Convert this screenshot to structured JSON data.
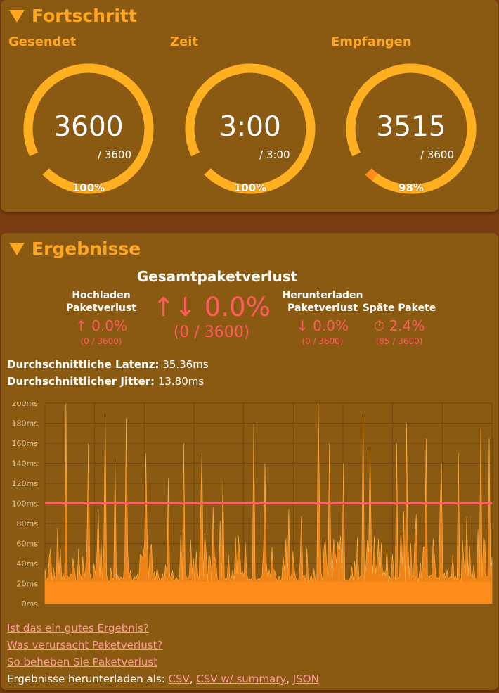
{
  "progress": {
    "title": "Fortschritt",
    "gauges": [
      {
        "label": "Gesendet",
        "value": "3600",
        "total": "/ 3600",
        "percent_label": "100%",
        "fraction": 1.0
      },
      {
        "label": "Zeit",
        "value": "3:00",
        "total": "/ 3:00",
        "percent_label": "100%",
        "fraction": 1.0
      },
      {
        "label": "Empfangen",
        "value": "3515",
        "total": "/ 3600",
        "percent_label": "98%",
        "fraction": 0.976
      }
    ]
  },
  "results": {
    "title": "Ergebnisse",
    "total_loss": {
      "title": "Gesamtpaketverlust",
      "icon": "up-down-arrows-icon",
      "value": "↑↓ 0.0%",
      "count": "(0 / 3600)"
    },
    "upload_loss": {
      "label_line1": "Hochladen",
      "label_line2": "Paketverlust",
      "value": "↑ 0.0%",
      "count": "(0 / 3600)"
    },
    "download_loss": {
      "label_line1": "Herunterladen",
      "label_line2": "Paketverlust",
      "value": "↓ 0.0%",
      "count": "(0 / 3600)"
    },
    "late_packets": {
      "label": "Späte Pakete",
      "value": "⏱ 2.4%",
      "count": "(85 / 3600)"
    },
    "avg_latency": {
      "label": "Durchschnittliche Latenz:",
      "value": "35.36ms"
    },
    "avg_jitter": {
      "label": "Durchschnittlicher Jitter:",
      "value": "13.80ms"
    },
    "links": {
      "good_result": "Ist das ein gutes Ergebnis?",
      "cause": "Was verursacht Paketverlust?",
      "fix": "So beheben Sie Paketverlust",
      "download_prefix": "Ergebnisse herunterladen als:",
      "csv": "CSV",
      "csv_summary": "CSV w/ summary",
      "json": "JSON"
    }
  },
  "colors": {
    "accent": "#ffa81f",
    "gauge_arc": "#ffb020",
    "loss_red": "#ff5c5c",
    "threshold_line": "#ff6464",
    "series": "#ff8c1a",
    "panel": "#8b5a12"
  },
  "chart_data": {
    "type": "area",
    "y_unit": "ms",
    "ylim": [
      0,
      200
    ],
    "y_ticks": [
      "200ms",
      "180ms",
      "160ms",
      "140ms",
      "120ms",
      "100ms",
      "80ms",
      "60ms",
      "40ms",
      "20ms",
      "0ms"
    ],
    "threshold": 100,
    "samples": 3600,
    "baseline_latency": 22,
    "typical_spike_max": 60,
    "spikes": [
      [
        9,
        200
      ],
      [
        19,
        160
      ],
      [
        27,
        190
      ],
      [
        31,
        145
      ],
      [
        36,
        185
      ],
      [
        45,
        150
      ],
      [
        55,
        125
      ],
      [
        62,
        160
      ],
      [
        70,
        150
      ],
      [
        79,
        125
      ],
      [
        93,
        180
      ],
      [
        98,
        140
      ],
      [
        122,
        200
      ],
      [
        127,
        160
      ],
      [
        133,
        140
      ],
      [
        142,
        190
      ],
      [
        145,
        155
      ],
      [
        157,
        160
      ],
      [
        161,
        180
      ],
      [
        170,
        165
      ],
      [
        177,
        140
      ],
      [
        184,
        150
      ],
      [
        194,
        175
      ],
      [
        198,
        165
      ]
    ],
    "grid": true
  }
}
